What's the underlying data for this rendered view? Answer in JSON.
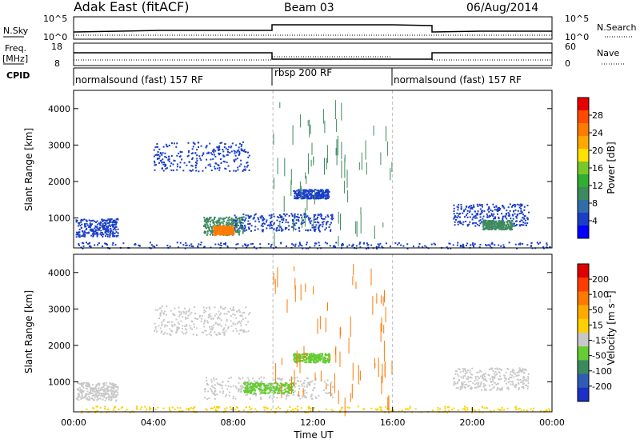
{
  "header": {
    "title": "Adak East (fitACF)",
    "beam": "Beam 03",
    "date": "06/Aug/2014"
  },
  "sky_panel": {
    "left_label": "N.Sky",
    "right_label": "N.Search",
    "left_ticks": [
      "10^5",
      "10^0"
    ],
    "right_ticks": [
      "10^5",
      "10^0"
    ]
  },
  "freq_panel": {
    "left_label_1": "Freq.",
    "left_label_2": "[MHz]",
    "right_label": "Nave",
    "left_ticks": [
      "18",
      "8"
    ],
    "right_ticks": [
      "60",
      "0"
    ]
  },
  "cpid": {
    "label": "CPID",
    "segments": [
      {
        "name": "normalsound (fast) 157 RF",
        "start_hour": 0,
        "end_hour": 10
      },
      {
        "name": "rbsp 200 RF",
        "start_hour": 10,
        "end_hour": 16
      },
      {
        "name": "normalsound (fast) 157 RF",
        "start_hour": 16,
        "end_hour": 24
      }
    ]
  },
  "colors": {
    "power": [
      "#0000ff",
      "#1a3ec8",
      "#2f6ea8",
      "#3d8a5e",
      "#2fae2f",
      "#79c829",
      "#ffe000",
      "#ffa800",
      "#ff7a00",
      "#ff4a00",
      "#e80000"
    ],
    "velocity": [
      "#1c2fc8",
      "#2f5cb4",
      "#3b8a5e",
      "#66cc33",
      "#c8c8c8",
      "#ffd000",
      "#ffaa00",
      "#ff7800",
      "#ff3c00",
      "#e00000"
    ]
  },
  "chart_data": [
    {
      "type": "heatmap",
      "name": "Power",
      "ylabel": "Slant Range [km]",
      "ylim": [
        180,
        4500
      ],
      "xlim": [
        0,
        24
      ],
      "y_ticks": [
        "4000",
        "3000",
        "2000",
        "1000"
      ],
      "y_tick_values": [
        4000,
        3000,
        2000,
        1000
      ],
      "colorbar": {
        "label": "Power [dB]",
        "range": [
          0,
          32
        ],
        "ticks": [
          "28",
          "24",
          "20",
          "16",
          "12",
          "8",
          "4"
        ],
        "tick_values": [
          28,
          24,
          20,
          16,
          12,
          8,
          4
        ]
      },
      "regions": [
        {
          "t0": 0.1,
          "t1": 2.2,
          "r0": 500,
          "r1": 1000,
          "color": "#1a3ec8"
        },
        {
          "t0": 4.0,
          "t1": 8.8,
          "r0": 2300,
          "r1": 3100,
          "color": "#1a3ec8"
        },
        {
          "t0": 6.5,
          "t1": 8.5,
          "r0": 550,
          "r1": 1050,
          "color": "#3d8a5e"
        },
        {
          "t0": 8.0,
          "t1": 13.0,
          "r0": 650,
          "r1": 1150,
          "color": "#1a3ec8"
        },
        {
          "t0": 7.0,
          "t1": 8.0,
          "r0": 550,
          "r1": 800,
          "color": "#ff7a00"
        },
        {
          "t0": 11.0,
          "t1": 12.8,
          "r0": 1550,
          "r1": 1800,
          "color": "#1a3ec8"
        },
        {
          "t0": 19.0,
          "t1": 22.8,
          "r0": 800,
          "r1": 1400,
          "color": "#1a3ec8"
        },
        {
          "t0": 20.5,
          "t1": 22.0,
          "r0": 700,
          "r1": 950,
          "color": "#3d8a5e"
        },
        {
          "t0": 0.0,
          "t1": 24.0,
          "r0": 180,
          "r1": 350,
          "color": "#1a3ec8"
        }
      ]
    },
    {
      "type": "heatmap",
      "name": "Velocity",
      "ylabel": "Slant Range [km]",
      "xlabel": "Time UT",
      "ylim": [
        180,
        4500
      ],
      "xlim": [
        0,
        24
      ],
      "y_ticks": [
        "4000",
        "3000",
        "2000",
        "1000"
      ],
      "y_tick_values": [
        4000,
        3000,
        2000,
        1000
      ],
      "x_ticks": [
        "00:00",
        "04:00",
        "08:00",
        "12:00",
        "16:00",
        "20:00",
        "00:00"
      ],
      "x_tick_values": [
        0,
        4,
        8,
        12,
        16,
        20,
        24
      ],
      "colorbar": {
        "label": "Velocity [m s⁻¹]",
        "ticks": [
          "200",
          "100",
          "50",
          "15",
          "-15",
          "-50",
          "-100",
          "-200"
        ]
      },
      "regions": [
        {
          "t0": 0.1,
          "t1": 2.2,
          "r0": 500,
          "r1": 1000,
          "color": "#c8c8c8"
        },
        {
          "t0": 4.0,
          "t1": 8.8,
          "r0": 2300,
          "r1": 3100,
          "color": "#c8c8c8"
        },
        {
          "t0": 6.5,
          "t1": 13.0,
          "r0": 550,
          "r1": 1150,
          "color": "#c8c8c8"
        },
        {
          "t0": 8.5,
          "t1": 11.0,
          "r0": 700,
          "r1": 1000,
          "color": "#66cc33"
        },
        {
          "t0": 11.0,
          "t1": 12.8,
          "r0": 1550,
          "r1": 1800,
          "color": "#66cc33"
        },
        {
          "t0": 19.0,
          "t1": 22.8,
          "r0": 800,
          "r1": 1400,
          "color": "#c8c8c8"
        },
        {
          "t0": 0.0,
          "t1": 24.0,
          "r0": 180,
          "r1": 350,
          "color": "#ffd000"
        }
      ]
    }
  ]
}
